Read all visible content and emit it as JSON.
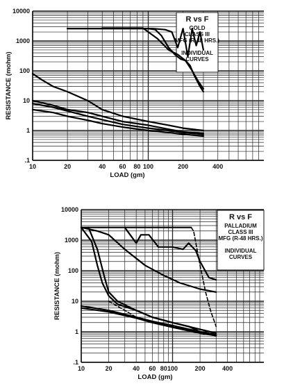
{
  "chart_data": [
    {
      "type": "line",
      "title": "",
      "xlabel": "LOAD (gm)",
      "ylabel": "RESISTANCE (mohm)",
      "x_scale": "log",
      "y_scale": "log",
      "xlim": [
        10,
        1000
      ],
      "ylim": [
        0.1,
        10000
      ],
      "grid": true,
      "x_tick_labels": [
        {
          "value": 10,
          "label": "10"
        },
        {
          "value": 20,
          "label": "20"
        },
        {
          "value": 40,
          "label": "40"
        },
        {
          "value": 60,
          "label": "60"
        },
        {
          "value": 80,
          "label": "80"
        },
        {
          "value": 100,
          "label": "100"
        },
        {
          "value": 200,
          "label": "200"
        },
        {
          "value": 400,
          "label": "400"
        }
      ],
      "y_tick_labels": [
        {
          "value": 10000,
          "label": "10000"
        },
        {
          "value": 1000,
          "label": "1000"
        },
        {
          "value": 100,
          "label": "100"
        },
        {
          "value": 10,
          "label": "10"
        },
        {
          "value": 1,
          "label": "1"
        },
        {
          "value": 0.1,
          "label": ".1"
        }
      ],
      "legend": {
        "position": "top-right",
        "lines": [
          "R vs F",
          "GOLD",
          "CLASS III",
          "MFG (R-48 HRS.)",
          "",
          "INDIVIDUAL",
          "CURVES"
        ]
      },
      "series": [
        {
          "style": "solid",
          "x": [
            20,
            100,
            115,
            130,
            150,
            170,
            190,
            210,
            230,
            250,
            280,
            300
          ],
          "y": [
            2600,
            2600,
            2400,
            1500,
            600,
            350,
            250,
            220,
            150,
            70,
            30,
            20
          ]
        },
        {
          "style": "solid",
          "x": [
            20,
            110,
            140,
            160,
            180,
            200,
            220,
            240,
            260,
            280,
            300
          ],
          "y": [
            2600,
            2600,
            2400,
            2000,
            600,
            2600,
            300,
            2600,
            700,
            2000,
            500
          ]
        },
        {
          "style": "solid",
          "x": [
            40,
            90,
            120,
            150,
            180,
            210,
            240,
            270,
            300
          ],
          "y": [
            2700,
            2700,
            1200,
            500,
            350,
            220,
            100,
            45,
            25
          ]
        },
        {
          "style": "solid",
          "x": [
            10,
            12,
            15,
            20,
            30,
            40,
            60,
            100,
            150,
            200,
            300
          ],
          "y": [
            80,
            50,
            30,
            20,
            10,
            5,
            3,
            2,
            1.5,
            1.2,
            1.0
          ]
        },
        {
          "style": "solid",
          "x": [
            10,
            15,
            20,
            30,
            40,
            60,
            100,
            150,
            200,
            300
          ],
          "y": [
            10,
            7,
            5,
            4,
            3,
            2,
            1.5,
            1.1,
            0.9,
            0.8
          ]
        },
        {
          "style": "solid",
          "x": [
            10,
            15,
            20,
            30,
            40,
            60,
            100,
            150,
            200,
            300
          ],
          "y": [
            8,
            6,
            4.5,
            3,
            2.3,
            1.6,
            1.2,
            1.0,
            0.85,
            0.75
          ]
        },
        {
          "style": "solid",
          "x": [
            10,
            15,
            20,
            30,
            40,
            60,
            100,
            150,
            200,
            300
          ],
          "y": [
            5,
            4,
            3,
            2.2,
            1.7,
            1.3,
            1.0,
            0.85,
            0.75,
            0.65
          ]
        }
      ]
    },
    {
      "type": "line",
      "title": "",
      "xlabel": "LOAD (gm)",
      "ylabel": "RESISTANCE (mohm)",
      "x_scale": "log",
      "y_scale": "log",
      "xlim": [
        10,
        1000
      ],
      "ylim": [
        0.1,
        10000
      ],
      "grid": true,
      "x_tick_labels": [
        {
          "value": 10,
          "label": "10"
        },
        {
          "value": 20,
          "label": "20"
        },
        {
          "value": 40,
          "label": "40"
        },
        {
          "value": 60,
          "label": "60"
        },
        {
          "value": 80,
          "label": "80"
        },
        {
          "value": 100,
          "label": "100"
        },
        {
          "value": 200,
          "label": "200"
        },
        {
          "value": 400,
          "label": "400"
        }
      ],
      "y_tick_labels": [
        {
          "value": 10000,
          "label": "10000"
        },
        {
          "value": 1000,
          "label": "1000"
        },
        {
          "value": 100,
          "label": "100"
        },
        {
          "value": 10,
          "label": "10"
        },
        {
          "value": 1,
          "label": "1"
        },
        {
          "value": 0.1,
          "label": ".1"
        }
      ],
      "legend": {
        "position": "top-right",
        "lines": [
          "R vs F",
          "PALLADIUM",
          "CLASS III",
          "MFG (R-48 HRS.)",
          "",
          "INDIVIDUAL",
          "CURVES"
        ]
      },
      "series": [
        {
          "style": "solid",
          "x": [
            10,
            160
          ],
          "y": [
            2600,
            2600
          ]
        },
        {
          "style": "solid",
          "x": [
            30,
            40,
            45,
            55,
            70,
            100,
            130,
            150,
            180,
            200,
            250,
            300
          ],
          "y": [
            2600,
            800,
            1500,
            1500,
            600,
            600,
            500,
            800,
            450,
            200,
            60,
            50
          ]
        },
        {
          "style": "dashed",
          "x": [
            160,
            170,
            180,
            200,
            230,
            260,
            300
          ],
          "y": [
            2600,
            2000,
            800,
            150,
            20,
            5,
            1.5
          ]
        },
        {
          "style": "solid",
          "x": [
            10,
            15,
            20,
            30,
            50,
            80,
            120,
            200,
            300
          ],
          "y": [
            2600,
            2000,
            1500,
            500,
            150,
            70,
            40,
            25,
            20
          ]
        },
        {
          "style": "solid",
          "x": [
            10,
            13,
            15,
            17,
            20,
            25,
            40,
            60,
            100,
            150,
            200,
            300
          ],
          "y": [
            2600,
            900,
            150,
            40,
            15,
            8,
            5,
            3,
            2,
            1.5,
            1.0,
            0.8
          ]
        },
        {
          "style": "solid",
          "x": [
            12,
            15,
            18,
            20,
            25,
            40,
            60,
            100,
            200,
            300
          ],
          "y": [
            2600,
            500,
            60,
            20,
            10,
            5,
            3,
            2,
            1.2,
            0.9
          ]
        },
        {
          "style": "solid",
          "x": [
            10,
            20,
            40,
            60,
            100,
            200,
            300
          ],
          "y": [
            7,
            5,
            3,
            2.2,
            1.6,
            1.0,
            0.8
          ]
        },
        {
          "style": "dashed",
          "x": [
            20,
            30,
            40,
            60,
            100,
            200,
            300
          ],
          "y": [
            10,
            5,
            3,
            2,
            1.5,
            1.0,
            0.8
          ]
        },
        {
          "style": "solid",
          "x": [
            10,
            20,
            40,
            60,
            100,
            200,
            300
          ],
          "y": [
            6,
            4.5,
            2.8,
            2,
            1.4,
            0.9,
            0.75
          ]
        }
      ]
    }
  ]
}
